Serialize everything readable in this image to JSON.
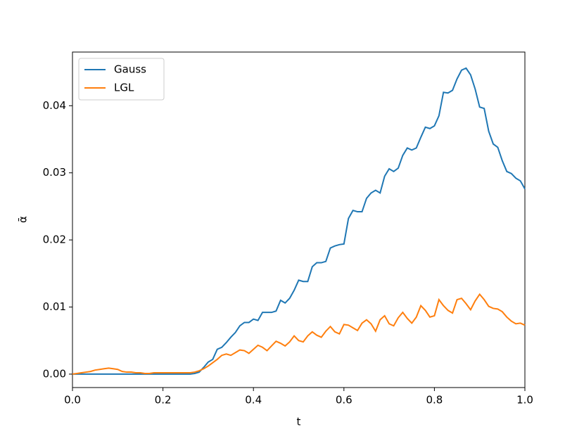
{
  "chart_data": {
    "type": "line",
    "xlabel": "t",
    "ylabel": "ᾱ",
    "x": [
      0,
      0.01,
      0.02,
      0.03,
      0.04,
      0.05,
      0.06,
      0.07,
      0.08,
      0.09,
      0.1,
      0.11,
      0.12,
      0.13,
      0.14,
      0.15,
      0.16,
      0.17,
      0.18,
      0.19,
      0.2,
      0.21,
      0.22,
      0.23,
      0.24,
      0.25,
      0.26,
      0.27,
      0.28,
      0.29,
      0.3,
      0.31,
      0.32,
      0.33,
      0.34,
      0.35,
      0.36,
      0.37,
      0.38,
      0.39,
      0.4,
      0.41,
      0.42,
      0.43,
      0.44,
      0.45,
      0.46,
      0.47,
      0.48,
      0.49,
      0.5,
      0.51,
      0.52,
      0.53,
      0.54,
      0.55,
      0.56,
      0.57,
      0.58,
      0.59,
      0.6,
      0.61,
      0.62,
      0.63,
      0.64,
      0.65,
      0.66,
      0.67,
      0.68,
      0.69,
      0.7,
      0.71,
      0.72,
      0.73,
      0.74,
      0.75,
      0.76,
      0.77,
      0.78,
      0.79,
      0.8,
      0.81,
      0.82,
      0.83,
      0.84,
      0.85,
      0.86,
      0.87,
      0.88,
      0.89,
      0.9,
      0.91,
      0.92,
      0.93,
      0.94,
      0.95,
      0.96,
      0.97,
      0.98,
      0.99,
      1
    ],
    "series": [
      {
        "name": "Gauss",
        "color": "#1f77b4",
        "values": [
          0,
          0,
          0,
          0,
          0,
          0,
          0,
          0,
          0,
          0,
          0,
          0,
          0,
          0,
          0,
          0,
          0,
          0,
          0,
          0,
          0,
          0,
          0,
          0,
          0,
          0,
          0,
          0.0001,
          0.0003,
          0.001,
          0.0018,
          0.0022,
          0.0037,
          0.004,
          0.0047,
          0.0055,
          0.0062,
          0.0072,
          0.0077,
          0.0077,
          0.0082,
          0.008,
          0.0092,
          0.0092,
          0.0092,
          0.0094,
          0.011,
          0.0106,
          0.0113,
          0.0125,
          0.014,
          0.0138,
          0.0138,
          0.016,
          0.0166,
          0.0166,
          0.0168,
          0.0188,
          0.0191,
          0.0193,
          0.0194,
          0.0232,
          0.0244,
          0.0242,
          0.0242,
          0.0262,
          0.027,
          0.0274,
          0.027,
          0.0295,
          0.0306,
          0.0302,
          0.0307,
          0.0326,
          0.0337,
          0.0334,
          0.0337,
          0.0353,
          0.0368,
          0.0366,
          0.037,
          0.0385,
          0.042,
          0.0419,
          0.0423,
          0.044,
          0.0453,
          0.0456,
          0.0446,
          0.0425,
          0.0398,
          0.0396,
          0.0362,
          0.0343,
          0.0338,
          0.0318,
          0.0302,
          0.0299,
          0.0292,
          0.0288,
          0.0276
        ]
      },
      {
        "name": "LGL",
        "color": "#ff7f0e",
        "values": [
          0,
          0.0001,
          0.0002,
          0.0003,
          0.0004,
          0.0006,
          0.0007,
          0.0008,
          0.0009,
          0.0008,
          0.0007,
          0.0004,
          0.0003,
          0.0003,
          0.0002,
          0.0002,
          0.0001,
          0.0001,
          0.0002,
          0.0002,
          0.0002,
          0.0002,
          0.0002,
          0.0002,
          0.0002,
          0.0002,
          0.0002,
          0.0003,
          0.0005,
          0.0008,
          0.0012,
          0.0017,
          0.0022,
          0.0028,
          0.003,
          0.0028,
          0.0032,
          0.0036,
          0.0035,
          0.0031,
          0.0037,
          0.0043,
          0.004,
          0.0035,
          0.0042,
          0.0049,
          0.0046,
          0.0042,
          0.0048,
          0.0057,
          0.005,
          0.0048,
          0.0057,
          0.0063,
          0.0058,
          0.0055,
          0.0064,
          0.0071,
          0.0063,
          0.006,
          0.0074,
          0.0073,
          0.0069,
          0.0065,
          0.0076,
          0.0081,
          0.0075,
          0.0064,
          0.0081,
          0.0087,
          0.0075,
          0.0072,
          0.0084,
          0.0092,
          0.0083,
          0.0076,
          0.0085,
          0.0102,
          0.0095,
          0.0085,
          0.0087,
          0.0111,
          0.0102,
          0.0095,
          0.0091,
          0.0111,
          0.0113,
          0.0105,
          0.0096,
          0.0109,
          0.0119,
          0.0111,
          0.0101,
          0.0098,
          0.0097,
          0.0093,
          0.0085,
          0.0079,
          0.0075,
          0.0076,
          0.0073
        ]
      }
    ],
    "xlim": [
      0,
      1
    ],
    "ylim": [
      -0.002,
      0.048
    ],
    "xticks": [
      {
        "value": 0,
        "label": "0.0"
      },
      0.2,
      0.4,
      0.6,
      0.8,
      {
        "value": 1,
        "label": "1.0"
      }
    ],
    "yticks": [
      {
        "value": 0,
        "label": "0.00"
      },
      0.01,
      0.02,
      0.03,
      0.04
    ],
    "legend": "upper left"
  }
}
